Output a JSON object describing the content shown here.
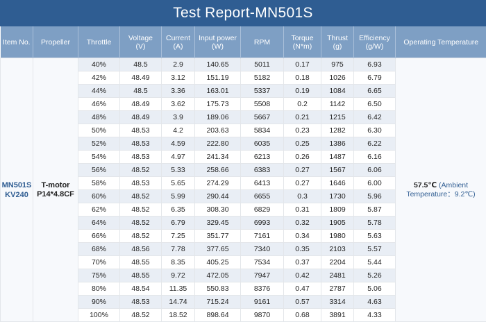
{
  "title": "Test Report-MN501S",
  "headers": {
    "item_no": "Item No.",
    "propeller": "Propeller",
    "throttle": "Throttle",
    "voltage_1": "Voltage",
    "voltage_2": "(V)",
    "current_1": "Current",
    "current_2": "(A)",
    "input_power_1": "Input power",
    "input_power_2": "(W)",
    "rpm": "RPM",
    "torque_1": "Torque",
    "torque_2": "(N*m)",
    "thrust_1": "Thrust",
    "thrust_2": "(g)",
    "efficiency_1": "Efficiency",
    "efficiency_2": "(g/W)",
    "operating_temp": "Operating Temperature"
  },
  "item": {
    "line1": "MN501S",
    "line2": "KV240"
  },
  "propeller": {
    "line1": "T-motor",
    "line2": "P14*4.8CF"
  },
  "temperature": {
    "value": "57.5℃",
    "ambient": "(Ambient Temperature：9.2℃)"
  },
  "rows": [
    [
      "40%",
      "48.5",
      "2.9",
      "140.65",
      "5011",
      "0.17",
      "975",
      "6.93"
    ],
    [
      "42%",
      "48.49",
      "3.12",
      "151.19",
      "5182",
      "0.18",
      "1026",
      "6.79"
    ],
    [
      "44%",
      "48.5",
      "3.36",
      "163.01",
      "5337",
      "0.19",
      "1084",
      "6.65"
    ],
    [
      "46%",
      "48.49",
      "3.62",
      "175.73",
      "5508",
      "0.2",
      "1142",
      "6.50"
    ],
    [
      "48%",
      "48.49",
      "3.9",
      "189.06",
      "5667",
      "0.21",
      "1215",
      "6.42"
    ],
    [
      "50%",
      "48.53",
      "4.2",
      "203.63",
      "5834",
      "0.23",
      "1282",
      "6.30"
    ],
    [
      "52%",
      "48.53",
      "4.59",
      "222.80",
      "6035",
      "0.25",
      "1386",
      "6.22"
    ],
    [
      "54%",
      "48.53",
      "4.97",
      "241.34",
      "6213",
      "0.26",
      "1487",
      "6.16"
    ],
    [
      "56%",
      "48.52",
      "5.33",
      "258.66",
      "6383",
      "0.27",
      "1567",
      "6.06"
    ],
    [
      "58%",
      "48.53",
      "5.65",
      "274.29",
      "6413",
      "0.27",
      "1646",
      "6.00"
    ],
    [
      "60%",
      "48.52",
      "5.99",
      "290.44",
      "6655",
      "0.3",
      "1730",
      "5.96"
    ],
    [
      "62%",
      "48.52",
      "6.35",
      "308.30",
      "6829",
      "0.31",
      "1809",
      "5.87"
    ],
    [
      "64%",
      "48.52",
      "6.79",
      "329.45",
      "6993",
      "0.32",
      "1905",
      "5.78"
    ],
    [
      "66%",
      "48.52",
      "7.25",
      "351.77",
      "7161",
      "0.34",
      "1980",
      "5.63"
    ],
    [
      "68%",
      "48.56",
      "7.78",
      "377.65",
      "7340",
      "0.35",
      "2103",
      "5.57"
    ],
    [
      "70%",
      "48.55",
      "8.35",
      "405.25",
      "7534",
      "0.37",
      "2204",
      "5.44"
    ],
    [
      "75%",
      "48.55",
      "9.72",
      "472.05",
      "7947",
      "0.42",
      "2481",
      "5.26"
    ],
    [
      "80%",
      "48.54",
      "11.35",
      "550.83",
      "8376",
      "0.47",
      "2787",
      "5.06"
    ],
    [
      "90%",
      "48.53",
      "14.74",
      "715.24",
      "9161",
      "0.57",
      "3314",
      "4.63"
    ],
    [
      "100%",
      "48.52",
      "18.52",
      "898.64",
      "9870",
      "0.68",
      "3891",
      "4.33"
    ]
  ]
}
